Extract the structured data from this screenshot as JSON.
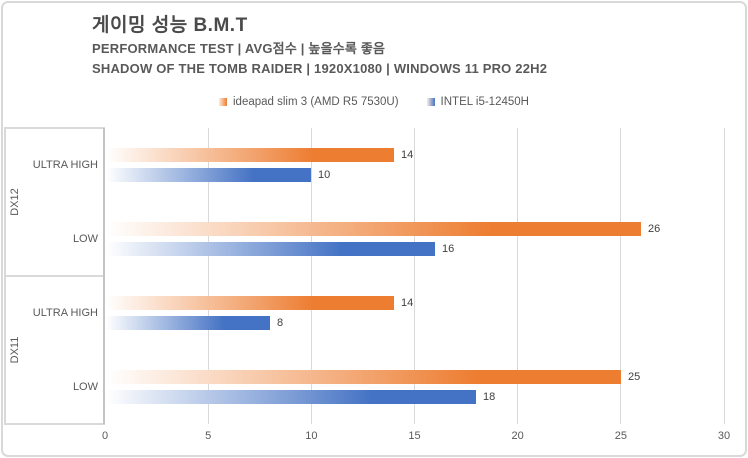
{
  "header": {
    "title": "게이밍 성능 B.M.T",
    "subtitle_line1": "PERFORMANCE TEST | AVG점수 | 높을수록 좋음",
    "subtitle_line2": "SHADOW OF THE TOMB RAIDER | 1920X1080 | WINDOWS 11 PRO 22H2"
  },
  "chart_data": {
    "type": "bar",
    "orientation": "horizontal",
    "title": "게이밍 성능 B.M.T",
    "xlim": [
      0,
      30
    ],
    "xticks": [
      0,
      5,
      10,
      15,
      20,
      25,
      30
    ],
    "grid": true,
    "legend_position": "top-center",
    "value_labels_shown": true,
    "groups": [
      {
        "label": "DX12",
        "categories": [
          "ULTRA HIGH",
          "LOW"
        ]
      },
      {
        "label": "DX11",
        "categories": [
          "ULTRA HIGH",
          "LOW"
        ]
      }
    ],
    "categories": [
      "DX12 / ULTRA HIGH",
      "DX12 / LOW",
      "DX11 / ULTRA HIGH",
      "DX11 / LOW"
    ],
    "series": [
      {
        "name": "ideapad slim 3 (AMD R5 7530U)",
        "color": "#ED7D31",
        "values": [
          14,
          26,
          14,
          25
        ]
      },
      {
        "name": "INTEL i5-12450H",
        "color": "#4472C4",
        "values": [
          10,
          16,
          8,
          18
        ]
      }
    ]
  },
  "colors": {
    "series_orange": "#ED7D31",
    "series_blue": "#4472C4",
    "gridline": "#D9D9D9",
    "axis_line": "#C3C3C3",
    "value_label_text": "#404040",
    "axis_text": "#595959",
    "title_text": "#4A4A4A"
  }
}
